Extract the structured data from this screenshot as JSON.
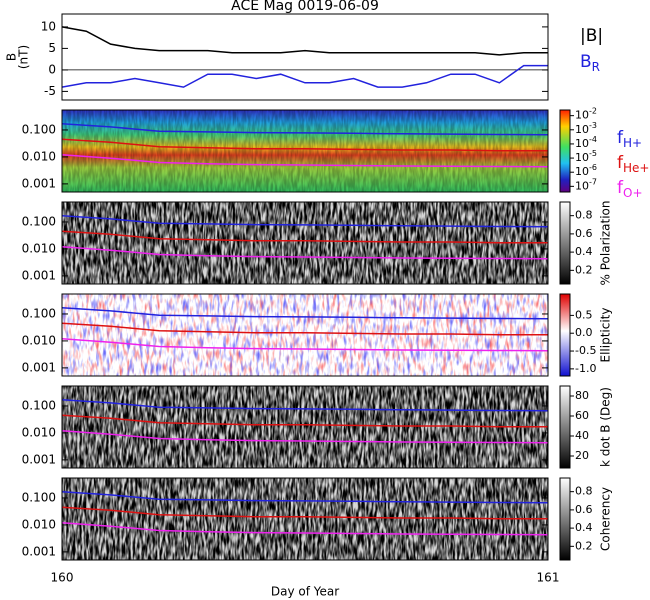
{
  "chart_data": [
    {
      "type": "line",
      "title": "ACE Mag 0019-06-09",
      "ylabel": [
        "B",
        "(nT)"
      ],
      "xlim": [
        160,
        161
      ],
      "ylim": [
        -7,
        13
      ],
      "yticks": [
        -5,
        0,
        5,
        10
      ],
      "x": [
        160,
        160.05,
        160.1,
        160.15,
        160.2,
        160.25,
        160.3,
        160.35,
        160.4,
        160.45,
        160.5,
        160.55,
        160.6,
        160.65,
        160.7,
        160.75,
        160.8,
        160.85,
        160.9,
        160.95,
        161
      ],
      "series": [
        {
          "label": {
            "text": "|B|"
          },
          "color": "#000000",
          "values": [
            10,
            9,
            6,
            5,
            4.5,
            4.5,
            4.5,
            4,
            4,
            4,
            4.5,
            4,
            4,
            4,
            4,
            4,
            4,
            4,
            3.5,
            4,
            4
          ]
        },
        {
          "label": {
            "text": "B",
            "sub": "R"
          },
          "color": "#2222dd",
          "values": [
            -4,
            -3,
            -3,
            -2,
            -3,
            -4,
            -1,
            -1,
            -2,
            -1,
            -3,
            -3,
            -2,
            -4,
            -4,
            -3,
            -1,
            -1,
            -3,
            1,
            1
          ]
        }
      ]
    },
    {
      "type": "spectrogram",
      "background": "rainbow",
      "log_y": true,
      "xlim": [
        160,
        161
      ],
      "ylim": [
        0.0005,
        0.55
      ],
      "yticks": [
        {
          "value": 0.001,
          "label": "0.001"
        },
        {
          "value": 0.01,
          "label": "0.010"
        },
        {
          "value": 0.1,
          "label": "0.100"
        }
      ],
      "colorbar": {
        "lim": [
          -7.4,
          -1.6
        ],
        "ticks": [
          {
            "value": -2,
            "label": "10",
            "exponent": "-2"
          },
          {
            "value": -3,
            "label": "10",
            "exponent": "-3"
          },
          {
            "value": -4,
            "label": "10",
            "exponent": "-4"
          },
          {
            "value": -5,
            "label": "10",
            "exponent": "-5"
          },
          {
            "value": -6,
            "label": "10",
            "exponent": "-6"
          },
          {
            "value": -7,
            "label": "10",
            "exponent": "-7"
          }
        ]
      },
      "x": [
        160,
        160.1,
        160.2,
        160.3,
        160.4,
        160.5,
        160.6,
        160.7,
        160.8,
        160.9,
        161
      ],
      "series": [
        {
          "label": {
            "text": "f",
            "sub": "H+"
          },
          "color": "#2222dd",
          "values": [
            0.17,
            0.13,
            0.09,
            0.085,
            0.08,
            0.078,
            0.075,
            0.072,
            0.07,
            0.068,
            0.067
          ]
        },
        {
          "label": {
            "text": "f",
            "sub": "He+"
          },
          "color": "#dd1111",
          "values": [
            0.045,
            0.035,
            0.024,
            0.022,
            0.02,
            0.02,
            0.019,
            0.018,
            0.018,
            0.017,
            0.017
          ]
        },
        {
          "label": {
            "text": "f",
            "sub": "O+"
          },
          "color": "#ee22ee",
          "values": [
            0.012,
            0.009,
            0.0062,
            0.0056,
            0.0052,
            0.005,
            0.0048,
            0.0046,
            0.0045,
            0.0044,
            0.0043
          ]
        }
      ]
    },
    {
      "type": "spectrogram",
      "background": "gray",
      "log_y": true,
      "xlim": [
        160,
        161
      ],
      "ylim": [
        0.0005,
        0.55
      ],
      "yticks": [
        {
          "value": 0.001,
          "label": "0.001"
        },
        {
          "value": 0.01,
          "label": "0.010"
        },
        {
          "value": 0.1,
          "label": "0.100"
        }
      ],
      "colorbar": {
        "label": "% Polarization",
        "lim": [
          0.05,
          0.95
        ],
        "ticks": [
          0.2,
          0.4,
          0.6,
          0.8
        ]
      },
      "x": [
        160,
        160.1,
        160.2,
        160.3,
        160.4,
        160.5,
        160.6,
        160.7,
        160.8,
        160.9,
        161
      ],
      "series": [
        {
          "color": "#2222dd",
          "values": [
            0.17,
            0.13,
            0.09,
            0.085,
            0.08,
            0.078,
            0.075,
            0.072,
            0.07,
            0.068,
            0.067
          ]
        },
        {
          "color": "#dd1111",
          "values": [
            0.045,
            0.035,
            0.024,
            0.022,
            0.02,
            0.02,
            0.019,
            0.018,
            0.018,
            0.017,
            0.017
          ]
        },
        {
          "color": "#ee22ee",
          "values": [
            0.012,
            0.009,
            0.0062,
            0.0056,
            0.0052,
            0.005,
            0.0048,
            0.0046,
            0.0045,
            0.0044,
            0.0043
          ]
        }
      ]
    },
    {
      "type": "spectrogram",
      "background": "diverging",
      "log_y": true,
      "xlim": [
        160,
        161
      ],
      "ylim": [
        0.0005,
        0.55
      ],
      "yticks": [
        {
          "value": 0.001,
          "label": "0.001"
        },
        {
          "value": 0.01,
          "label": "0.010"
        },
        {
          "value": 0.1,
          "label": "0.100"
        }
      ],
      "colorbar": {
        "label": "Ellipticity",
        "lim": [
          -1.2,
          1.1
        ],
        "ticks": [
          {
            "value": -1,
            "label": "-1.0"
          },
          -0.5,
          {
            "value": 0,
            "label": "0.0"
          },
          0.5
        ]
      },
      "x": [
        160,
        160.1,
        160.2,
        160.3,
        160.4,
        160.5,
        160.6,
        160.7,
        160.8,
        160.9,
        161
      ],
      "series": [
        {
          "color": "#2222dd",
          "values": [
            0.17,
            0.13,
            0.09,
            0.085,
            0.08,
            0.078,
            0.075,
            0.072,
            0.07,
            0.068,
            0.067
          ]
        },
        {
          "color": "#dd1111",
          "values": [
            0.045,
            0.035,
            0.024,
            0.022,
            0.02,
            0.02,
            0.019,
            0.018,
            0.018,
            0.017,
            0.017
          ]
        },
        {
          "color": "#ee22ee",
          "values": [
            0.012,
            0.009,
            0.0062,
            0.0056,
            0.0052,
            0.005,
            0.0048,
            0.0046,
            0.0045,
            0.0044,
            0.0043
          ]
        }
      ]
    },
    {
      "type": "spectrogram",
      "background": "gray",
      "log_y": true,
      "xlim": [
        160,
        161
      ],
      "ylim": [
        0.0005,
        0.55
      ],
      "yticks": [
        {
          "value": 0.001,
          "label": "0.001"
        },
        {
          "value": 0.01,
          "label": "0.010"
        },
        {
          "value": 0.1,
          "label": "0.100"
        }
      ],
      "colorbar": {
        "label": "k dot B (Deg)",
        "lim": [
          8,
          90
        ],
        "ticks": [
          20,
          40,
          60,
          80
        ]
      },
      "x": [
        160,
        160.1,
        160.2,
        160.3,
        160.4,
        160.5,
        160.6,
        160.7,
        160.8,
        160.9,
        161
      ],
      "series": [
        {
          "color": "#2222dd",
          "values": [
            0.17,
            0.13,
            0.09,
            0.085,
            0.08,
            0.078,
            0.075,
            0.072,
            0.07,
            0.068,
            0.067
          ]
        },
        {
          "color": "#dd1111",
          "values": [
            0.045,
            0.035,
            0.024,
            0.022,
            0.02,
            0.02,
            0.019,
            0.018,
            0.018,
            0.017,
            0.017
          ]
        },
        {
          "color": "#ee22ee",
          "values": [
            0.012,
            0.009,
            0.0062,
            0.0056,
            0.0052,
            0.005,
            0.0048,
            0.0046,
            0.0045,
            0.0044,
            0.0043
          ]
        }
      ]
    },
    {
      "type": "spectrogram",
      "background": "gray",
      "log_y": true,
      "xlim": [
        160,
        161
      ],
      "xticks": [
        160,
        161
      ],
      "xlabel": "Day of Year",
      "ylim": [
        0.0005,
        0.55
      ],
      "yticks": [
        {
          "value": 0.001,
          "label": "0.001"
        },
        {
          "value": 0.01,
          "label": "0.010"
        },
        {
          "value": 0.1,
          "label": "0.100"
        }
      ],
      "colorbar": {
        "label": "Coherency",
        "lim": [
          0.05,
          0.95
        ],
        "ticks": [
          0.2,
          0.4,
          0.6,
          0.8
        ]
      },
      "x": [
        160,
        160.1,
        160.2,
        160.3,
        160.4,
        160.5,
        160.6,
        160.7,
        160.8,
        160.9,
        161
      ],
      "series": [
        {
          "color": "#2222dd",
          "values": [
            0.17,
            0.13,
            0.09,
            0.085,
            0.08,
            0.078,
            0.075,
            0.072,
            0.07,
            0.068,
            0.067
          ]
        },
        {
          "color": "#dd1111",
          "values": [
            0.045,
            0.035,
            0.024,
            0.022,
            0.02,
            0.02,
            0.019,
            0.018,
            0.018,
            0.017,
            0.017
          ]
        },
        {
          "color": "#ee22ee",
          "values": [
            0.012,
            0.009,
            0.0062,
            0.0056,
            0.0052,
            0.005,
            0.0048,
            0.0046,
            0.0045,
            0.0044,
            0.0043
          ]
        }
      ]
    }
  ]
}
